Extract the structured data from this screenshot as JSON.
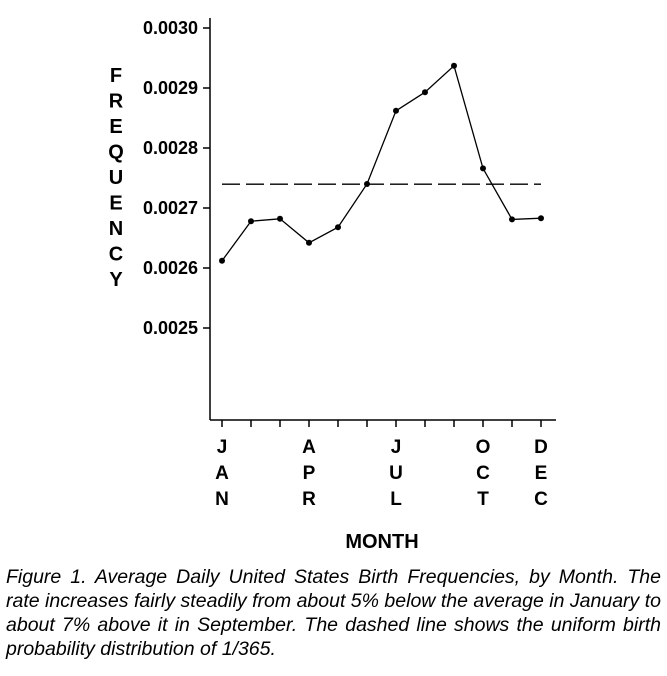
{
  "chart_data": {
    "type": "line",
    "xlabel": "MONTH",
    "ylabel": "FREQUENCY",
    "ylim": [
      0.00235,
      0.003
    ],
    "yticks": [
      "0.0030",
      "0.0029",
      "0.0028",
      "0.0027",
      "0.0026",
      "0.0025"
    ],
    "ytick_values": [
      0.003,
      0.0029,
      0.0028,
      0.0027,
      0.0026,
      0.0025
    ],
    "x": [
      1,
      2,
      3,
      4,
      5,
      6,
      7,
      8,
      9,
      10,
      11,
      12
    ],
    "xtick_labels": [
      {
        "month": 1,
        "text": "JAN"
      },
      {
        "month": 4,
        "text": "APR"
      },
      {
        "month": 7,
        "text": "JUL"
      },
      {
        "month": 10,
        "text": "OCT"
      },
      {
        "month": 12,
        "text": "DEC"
      }
    ],
    "series": [
      {
        "values": [
          0.002612,
          0.002678,
          0.002682,
          0.002642,
          0.002668,
          0.00274,
          0.002862,
          0.002893,
          0.002937,
          0.002766,
          0.002681,
          0.002683
        ],
        "style": "solid",
        "markers": true
      },
      {
        "values": [
          0.0027397,
          0.0027397,
          0.0027397,
          0.0027397,
          0.0027397,
          0.0027397,
          0.0027397,
          0.0027397,
          0.0027397,
          0.0027397,
          0.0027397,
          0.0027397
        ],
        "style": "dashed",
        "markers": false
      }
    ],
    "grid": false,
    "colors": {
      "line": "#000000",
      "background": "#ffffff"
    }
  },
  "caption": {
    "label": "Figure 1.",
    "text": "Average Daily United States Birth Frequencies, by Month. The rate increases fairly steadily from about 5% below the average in January to about 7% above it in September. The dashed line shows the uniform birth probability distribution of 1/365."
  }
}
